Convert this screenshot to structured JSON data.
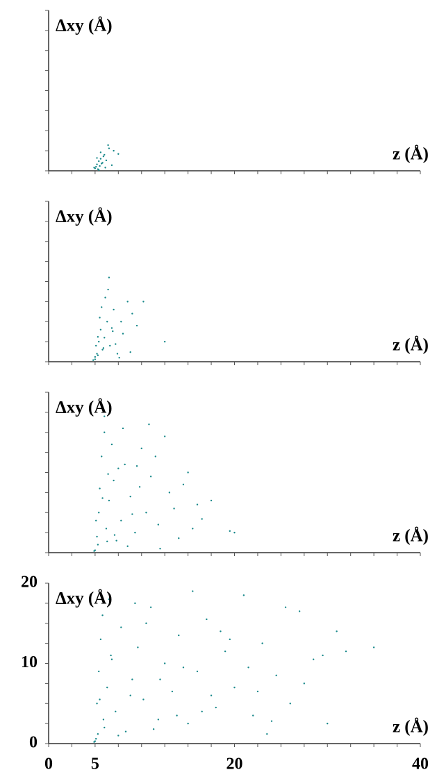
{
  "chart_data": [
    {
      "type": "scatter",
      "ylabel": "Δxy (Å)",
      "xlabel": "z (Å)",
      "color": "#17888a",
      "xlim": [
        0,
        40
      ],
      "ylim": [
        0,
        20
      ],
      "xminorticks": [
        0,
        2.5,
        5,
        7.5,
        10,
        12.5,
        15,
        17.5,
        20,
        22.5,
        25,
        27.5,
        30,
        32.5,
        35,
        37.5,
        40
      ],
      "yminorticks": [
        0,
        2.5,
        5,
        7.5,
        10,
        12.5,
        15,
        17.5,
        20
      ],
      "series": [
        {
          "name": "",
          "x": [
            5,
            5.2,
            5.4,
            5.1,
            5.6,
            5.8,
            6,
            5.3,
            5.5,
            5.9,
            6.2,
            6.5,
            7,
            7.5,
            5.7,
            6.1,
            5.2,
            5.4,
            6.8,
            5.6,
            4.9,
            6.4
          ],
          "values": [
            0.3,
            0.8,
            1.2,
            0.5,
            1.5,
            1,
            2,
            0.2,
            0.6,
            1.8,
            1.3,
            2.8,
            2.5,
            2.1,
            0.9,
            0.4,
            1.6,
            0.1,
            0.7,
            2.3,
            0.4,
            3.2
          ]
        }
      ]
    },
    {
      "type": "scatter",
      "ylabel": "Δxy (Å)",
      "xlabel": "z (Å)",
      "color": "#17888a",
      "xlim": [
        0,
        40
      ],
      "ylim": [
        0,
        20
      ],
      "xminorticks": [
        0,
        2.5,
        5,
        7.5,
        10,
        12.5,
        15,
        17.5,
        20,
        22.5,
        25,
        27.5,
        30,
        32.5,
        35,
        37.5,
        40
      ],
      "yminorticks": [
        0,
        2.5,
        5,
        7.5,
        10,
        12.5,
        15,
        17.5,
        20
      ],
      "series": [
        {
          "name": "",
          "x": [
            5,
            5.2,
            5.4,
            5.6,
            5.8,
            6,
            6.3,
            6.6,
            7,
            7.4,
            8,
            8.5,
            9,
            9.5,
            10.2,
            12.5,
            6.5,
            5.5,
            5.3,
            6.1,
            7.2,
            6.8,
            5.7,
            7.8,
            8.8,
            6.9,
            5.1,
            5.9,
            6.4,
            7.6,
            4.8,
            5.0,
            5.3
          ],
          "values": [
            0.3,
            1,
            2.5,
            4,
            1.5,
            3,
            5,
            2,
            6.5,
            1,
            3.5,
            7.5,
            6,
            4.5,
            7.5,
            2.5,
            10.5,
            5.5,
            0.8,
            8,
            2.2,
            4.2,
            6.8,
            5,
            1.2,
            3.8,
            2,
            1.7,
            9,
            0.5,
            0.2,
            0.6,
            3.1
          ]
        }
      ]
    },
    {
      "type": "scatter",
      "ylabel": "Δxy (Å)",
      "xlabel": "z (Å)",
      "color": "#17888a",
      "xlim": [
        0,
        40
      ],
      "ylim": [
        0,
        20
      ],
      "xminorticks": [
        0,
        2.5,
        5,
        7.5,
        10,
        12.5,
        15,
        17.5,
        20,
        22.5,
        25,
        27.5,
        30,
        32.5,
        35,
        37.5,
        40
      ],
      "yminorticks": [
        0,
        2.5,
        5,
        7.5,
        10,
        12.5,
        15,
        17.5,
        20
      ],
      "series": [
        {
          "name": "",
          "x": [
            5,
            5.2,
            5.4,
            5.5,
            5.7,
            6,
            6.2,
            6.5,
            7,
            7.3,
            7.8,
            8.2,
            8.8,
            9.3,
            10,
            10.5,
            11,
            11.8,
            12.5,
            13,
            14,
            15,
            16,
            17.5,
            19.5,
            20,
            6,
            6.8,
            7.5,
            8.5,
            9,
            9.8,
            11.5,
            13.5,
            15.5,
            5.3,
            5.8,
            6.4,
            7.1,
            8,
            12,
            14.5,
            16.5,
            4.9,
            5.1,
            6.3,
            10.8,
            9.5
          ],
          "values": [
            0.3,
            2,
            5,
            8,
            12,
            15,
            3,
            6.5,
            9,
            1.5,
            4,
            11,
            7,
            2.5,
            13,
            5,
            9.5,
            3.5,
            14.5,
            7.5,
            1.8,
            10,
            6,
            6.5,
            2.7,
            2.5,
            17,
            13.5,
            10.5,
            0.8,
            4.8,
            8.2,
            12,
            5.5,
            3,
            1,
            6.8,
            9.8,
            2.2,
            15.5,
            0.5,
            8.5,
            4.2,
            0.2,
            4,
            1.4,
            16,
            10.8
          ]
        }
      ]
    },
    {
      "type": "scatter",
      "ylabel": "Δxy (Å)",
      "xlabel": "z (Å)",
      "color": "#17888a",
      "xlim": [
        0,
        40
      ],
      "ylim": [
        0,
        20
      ],
      "xticks": [
        0,
        5,
        20,
        40
      ],
      "yticks": [
        0,
        10,
        20
      ],
      "xminorticks": [
        0,
        2.5,
        5,
        7.5,
        10,
        12.5,
        15,
        17.5,
        20,
        22.5,
        25,
        27.5,
        30,
        32.5,
        35,
        37.5,
        40
      ],
      "yminorticks": [
        0,
        2.5,
        5,
        7.5,
        10,
        12.5,
        15,
        17.5,
        20
      ],
      "series": [
        {
          "name": "",
          "x": [
            5,
            5.2,
            5.4,
            5.6,
            5.8,
            6,
            6.3,
            6.7,
            7.2,
            7.8,
            8.3,
            9,
            9.6,
            10.2,
            11,
            11.8,
            12.5,
            13.3,
            14,
            15,
            16,
            17,
            18,
            19,
            20,
            21,
            22,
            23,
            24.5,
            26,
            27,
            28.5,
            30,
            31,
            32,
            35,
            6.5,
            7.5,
            8.8,
            10.5,
            12,
            13.8,
            15.5,
            17.5,
            19.5,
            21.5,
            23.5,
            25.5,
            27.5,
            29.5,
            5.3,
            5.5,
            5.9,
            6.8,
            9.3,
            11.3,
            14.5,
            16.5,
            18.5,
            22.5,
            24,
            4.9,
            5.1
          ],
          "values": [
            0.3,
            5,
            9,
            13,
            16,
            2,
            7,
            11,
            4,
            14.5,
            1.5,
            8,
            12,
            5.5,
            17,
            3,
            10,
            6.5,
            13.5,
            2.5,
            9,
            15.5,
            4.5,
            11.5,
            7,
            18.5,
            3.5,
            12.5,
            8.5,
            5,
            16.5,
            10.5,
            2.5,
            14,
            11.5,
            12,
            18,
            1,
            6,
            15,
            8,
            3.5,
            19,
            6,
            13,
            9.5,
            1.2,
            17,
            7.5,
            11,
            1.2,
            5.5,
            3,
            10.5,
            17.5,
            1.8,
            9.5,
            4,
            14,
            6.5,
            2.8,
            0.2,
            0.6
          ]
        }
      ]
    }
  ]
}
